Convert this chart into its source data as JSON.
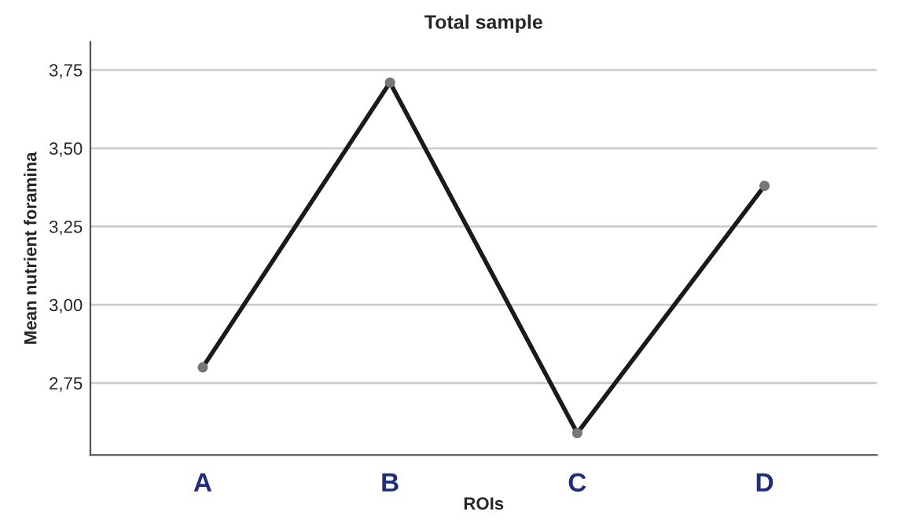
{
  "chart_data": {
    "type": "line",
    "title": "Total sample",
    "xlabel": "ROIs",
    "ylabel": "Mean nutrient foramina",
    "categories": [
      "A",
      "B",
      "C",
      "D"
    ],
    "series": [
      {
        "color": "#1a1a1a",
        "values": [
          2.8,
          3.71,
          2.59,
          3.38
        ]
      }
    ],
    "ylim": [
      2.52,
      3.84
    ],
    "yticks": [
      {
        "value": 2.75,
        "label": "2,75"
      },
      {
        "value": 3.0,
        "label": "3,00"
      },
      {
        "value": 3.25,
        "label": "3,25"
      },
      {
        "value": 3.5,
        "label": "3,50"
      },
      {
        "value": 3.75,
        "label": "3,75"
      }
    ],
    "grid": "y",
    "marker": "circle",
    "line_style": "solid"
  }
}
